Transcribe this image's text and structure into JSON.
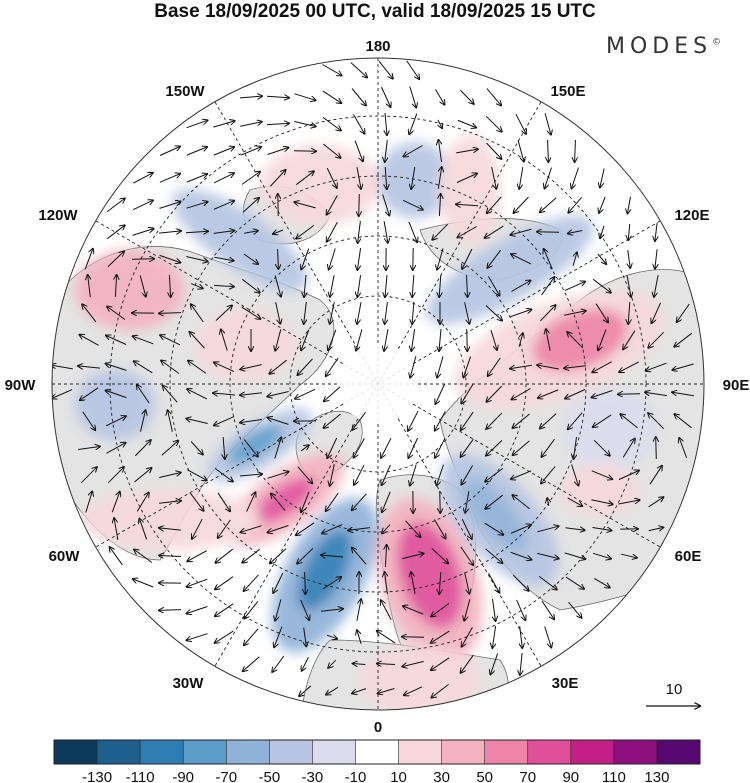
{
  "title": "Base 18/09/2025 00 UTC, valid 18/09/2025 15 UTC",
  "brand": "MODES",
  "brand_mark": "©",
  "map": {
    "projection": "north-polar-stereographic",
    "variable": "geopotential height anomaly with wind vectors",
    "longitude_labels": [
      "180",
      "150E",
      "120E",
      "90E",
      "60E",
      "30E",
      "0",
      "30W",
      "60W",
      "90W",
      "120W",
      "150W"
    ],
    "reference_vector_label": "10"
  },
  "colorbar": {
    "tick_labels": [
      "-130",
      "-110",
      "-90",
      "-70",
      "-50",
      "-30",
      "-10",
      "10",
      "30",
      "50",
      "70",
      "90",
      "110",
      "130"
    ],
    "colors": [
      "#0d3b5c",
      "#1e5f8e",
      "#2e7db5",
      "#5b9ccb",
      "#90b2d8",
      "#b6c5e2",
      "#dcdcee",
      "#ffffff",
      "#f8d8da",
      "#f4b2c0",
      "#ee84a8",
      "#e0509a",
      "#c41e88",
      "#8e0f7e",
      "#560870"
    ]
  }
}
